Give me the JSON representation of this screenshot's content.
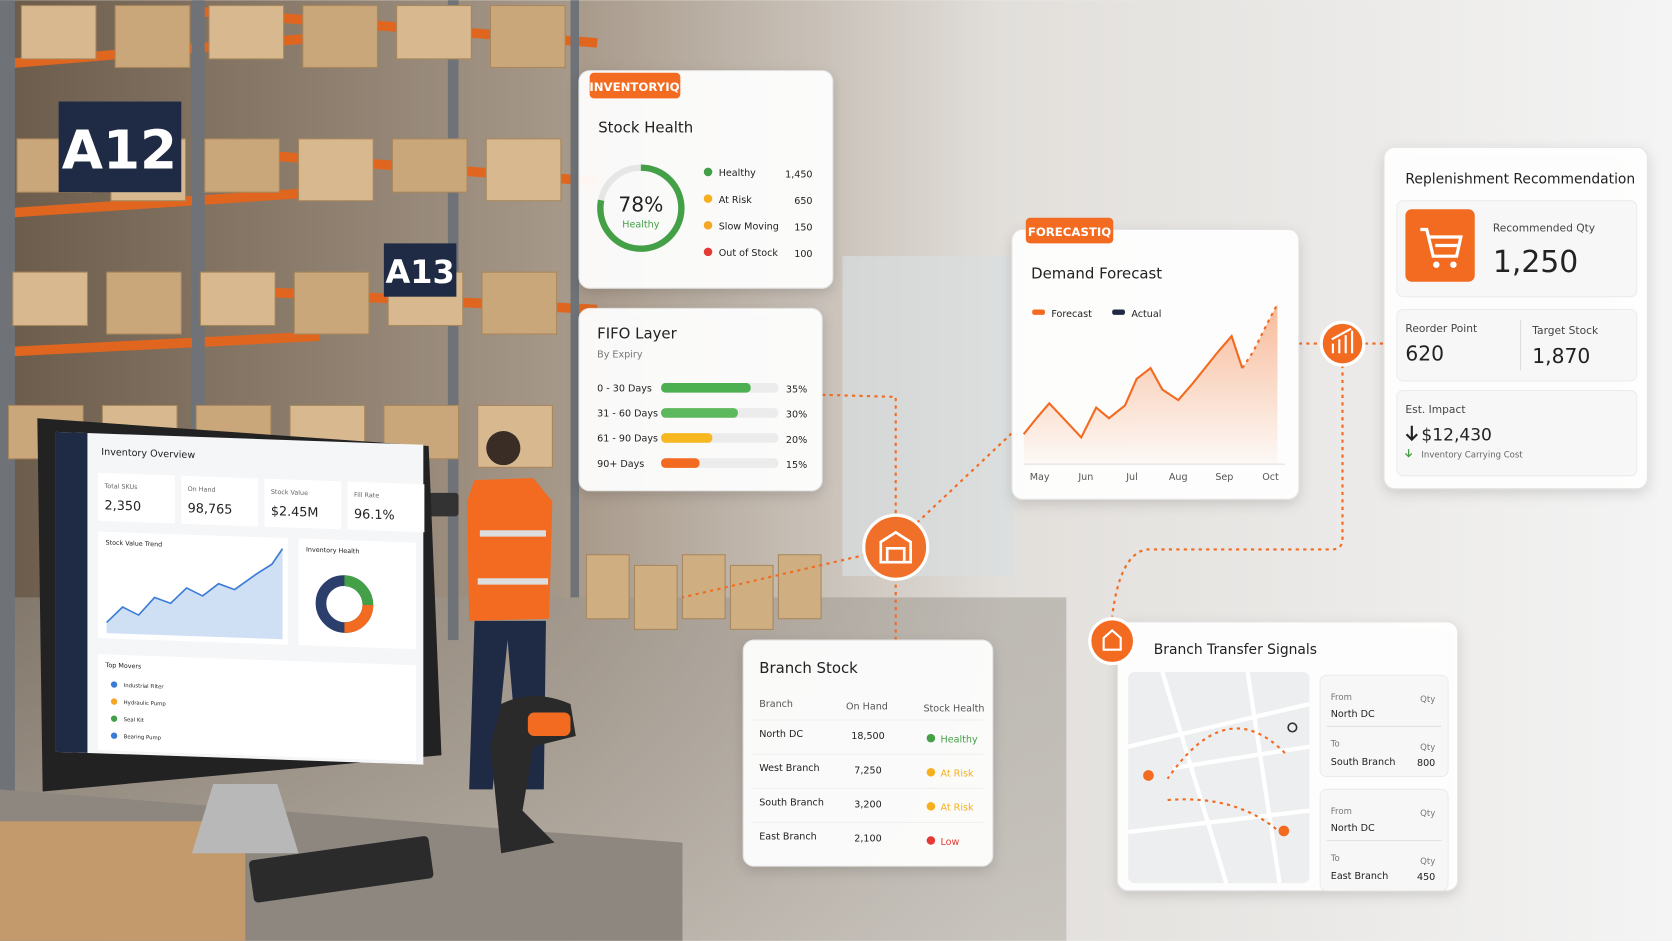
{
  "signs": [
    "A12",
    "A13"
  ],
  "monitor": {
    "title": "Inventory Overview",
    "kpis": [
      {
        "label": "Total SKUs",
        "value": "2,350"
      },
      {
        "label": "On Hand",
        "value": "98,765"
      },
      {
        "label": "Stock Value",
        "value": "$2.45M"
      },
      {
        "label": "Fill Rate",
        "value": "96.1%"
      }
    ],
    "trend_title": "Stock Value Trend",
    "health_title": "Inventory Health",
    "movers_title": "Top Movers",
    "movers": [
      "Industrial Filter",
      "Hydraulic Pump",
      "Seal Kit",
      "Bearing Pump"
    ]
  },
  "stock_health": {
    "tag": "INVENTORYIQ",
    "title": "Stock Health",
    "gauge": {
      "value": 78,
      "value_label": "78%",
      "caption": "Healthy"
    },
    "items": [
      {
        "name": "Healthy",
        "count": "1,450",
        "color": "#43a047"
      },
      {
        "name": "At Risk",
        "count": "650",
        "color": "#f6b01e"
      },
      {
        "name": "Slow Moving",
        "count": "150",
        "color": "#f5a623"
      },
      {
        "name": "Out of Stock",
        "count": "100",
        "color": "#e53935"
      }
    ]
  },
  "fifo": {
    "title": "FIFO Layer",
    "subtitle": "By Expiry",
    "rows": [
      "0 - 30 Days",
      "31 - 60 Days",
      "61 - 90 Days",
      "90+ Days"
    ],
    "values": [
      35,
      30,
      20,
      15
    ],
    "value_labels": [
      "35%",
      "30%",
      "20%",
      "15%"
    ],
    "colors": [
      "#4caf50",
      "#5cb85c",
      "#f6b81e",
      "#f26b21"
    ]
  },
  "branch_stock": {
    "title": "Branch Stock",
    "headers": [
      "Branch",
      "On Hand",
      "Stock Health"
    ],
    "rows": [
      [
        "North DC",
        "18,500",
        "Healthy"
      ],
      [
        "West Branch",
        "7,250",
        "At Risk"
      ],
      [
        "South Branch",
        "3,200",
        "At Risk"
      ],
      [
        "East Branch",
        "2,100",
        "Low"
      ]
    ],
    "status_colors": [
      "#43a047",
      "#f6b01e",
      "#f6b01e",
      "#e53935"
    ]
  },
  "forecast": {
    "tag": "FORECASTIQ",
    "title": "Demand Forecast",
    "legend": [
      {
        "name": "Forecast",
        "color": "#f26b21"
      },
      {
        "name": "Actual",
        "color": "#1f2a44"
      }
    ],
    "months": [
      "May",
      "Jun",
      "Jul",
      "Aug",
      "Sep",
      "Oct"
    ]
  },
  "replenishment": {
    "title": "Replenishment Recommendation",
    "recommended_label": "Recommended Qty",
    "recommended": "1,250",
    "reorder_label": "Reorder Point",
    "reorder": "620",
    "target_label": "Target Stock",
    "target": "1,870",
    "impact_label": "Est. Impact",
    "impact": "$12,430",
    "impact_note": "Inventory Carrying Cost"
  },
  "transfers": {
    "title": "Branch Transfer Signals",
    "items": [
      {
        "from_label": "From",
        "from": "North DC",
        "from_qty_label": "Qty",
        "to_label": "To",
        "to": "South Branch",
        "to_qty_label": "Qty",
        "qty": "800"
      },
      {
        "from_label": "From",
        "from": "North DC",
        "from_qty_label": "Qty",
        "to_label": "To",
        "to": "East Branch",
        "to_qty_label": "Qty",
        "qty": "450"
      }
    ]
  }
}
